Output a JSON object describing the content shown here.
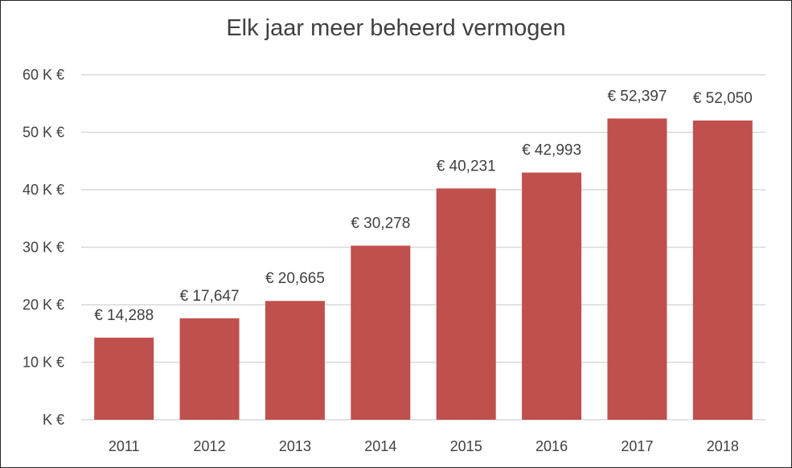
{
  "chart_data": {
    "type": "bar",
    "title": "Elk jaar meer beheerd vermogen",
    "xlabel": "",
    "ylabel": "",
    "categories": [
      "2011",
      "2012",
      "2013",
      "2014",
      "2015",
      "2016",
      "2017",
      "2018"
    ],
    "values": [
      14288,
      17647,
      20665,
      30278,
      40231,
      42993,
      52397,
      52050
    ],
    "data_labels": [
      "€ 14,288",
      "€ 17,647",
      "€ 20,665",
      "€ 30,278",
      "€ 40,231",
      "€ 42,993",
      "€ 52,397",
      "€ 52,050"
    ],
    "ylim": [
      0,
      60000
    ],
    "yticks": [
      0,
      10000,
      20000,
      30000,
      40000,
      50000,
      60000
    ],
    "ytick_labels": [
      "K €",
      "10 K €",
      "20 K €",
      "30 K €",
      "40 K €",
      "50 K €",
      "60 K €"
    ],
    "grid": true,
    "legend": "none",
    "bar_color": "#C0504D"
  }
}
